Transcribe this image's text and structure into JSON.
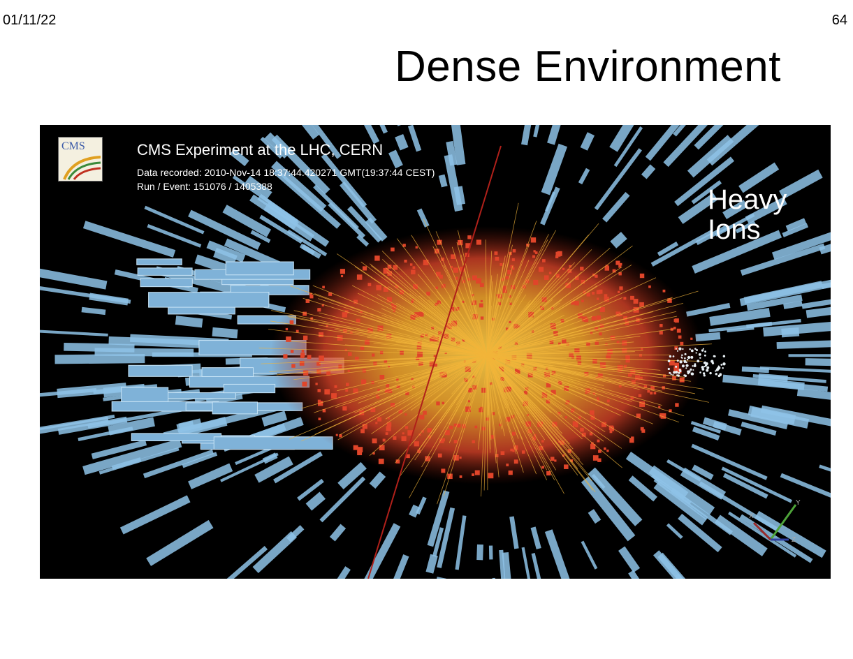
{
  "slide": {
    "date": "01/11/22",
    "page_number": "64",
    "title": "Dense Environment"
  },
  "event_display": {
    "experiment": "CMS Experiment at the LHC, CERN",
    "data_recorded": "Data recorded: 2010-Nov-14 18:37:44.420271 GMT(19:37:44 CEST)",
    "run_event": "Run / Event: 151076 / 1405388",
    "annotation_line1": "Heavy",
    "annotation_line2": "Ions",
    "logo_text": "CMS",
    "axis_x": "X",
    "axis_y": "Y",
    "axis_z": "Z",
    "colors": {
      "background": "#000000",
      "hcal_towers": "#8fc3e8",
      "ecal_hits": "#e0452a",
      "tracks": "#f2b53a"
    }
  }
}
